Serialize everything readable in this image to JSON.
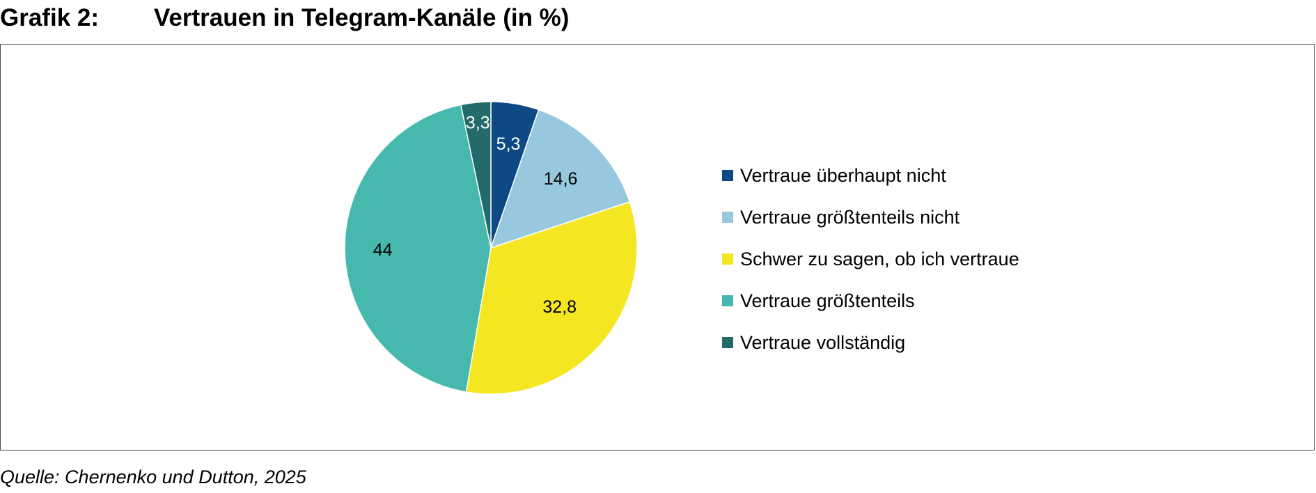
{
  "figure": {
    "number": "Grafik 2:",
    "title": "Vertrauen in Telegram-Kanäle (in %)",
    "source": "Quelle: Chernenko und Dutton, 2025"
  },
  "chart_data": {
    "type": "pie",
    "title": "Vertrauen in Telegram-Kanäle (in %)",
    "unit": "%",
    "start": "12 o'clock, clockwise",
    "legend_position": "right",
    "slices": [
      {
        "category": "Vertraue überhaupt nicht",
        "value": 5.3,
        "label": "5,3",
        "color": "#0d4a85",
        "label_color": "#ffffff"
      },
      {
        "category": "Vertraue größtenteils nicht",
        "value": 14.6,
        "label": "14,6",
        "color": "#98c8de",
        "label_color": "#000000"
      },
      {
        "category": "Schwer zu sagen, ob ich vertraue",
        "value": 32.8,
        "label": "32,8",
        "color": "#f5e622",
        "label_color": "#000000"
      },
      {
        "category": "Vertraue größtenteils",
        "value": 44,
        "label": "44",
        "color": "#47b8ae",
        "label_color": "#000000"
      },
      {
        "category": "Vertraue vollständig",
        "value": 3.3,
        "label": "3,3",
        "color": "#236b6b",
        "label_color": "#ffffff"
      }
    ]
  }
}
